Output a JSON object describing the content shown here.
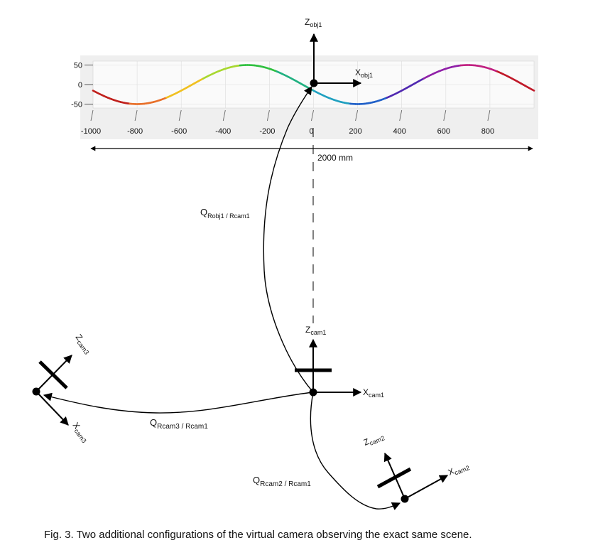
{
  "figure": {
    "plot": {
      "y_ticks": [
        "50",
        "0",
        "-50"
      ],
      "x_ticks": [
        "-1000",
        "-800",
        "-600",
        "-400",
        "-200",
        "0",
        "200",
        "400",
        "600",
        "800"
      ],
      "x_range": [
        -1000,
        1000
      ],
      "y_range": [
        -60,
        60
      ],
      "wave_amplitude": 50,
      "wave_period": 1000,
      "wave_colors": [
        "#c0201c",
        "#e8702a",
        "#f0c020",
        "#a8d830",
        "#30c040",
        "#20b080",
        "#20a0c0",
        "#2060c8",
        "#5028b0",
        "#9020a8",
        "#c02080",
        "#c01828"
      ]
    },
    "dimension_label": "2000 mm",
    "frames": {
      "obj1": {
        "z_main": "Z",
        "z_sub": "obj1",
        "x_main": "X",
        "x_sub": "obj1"
      },
      "cam1": {
        "z_main": "Z",
        "z_sub": "cam1",
        "x_main": "X",
        "x_sub": "cam1"
      },
      "cam2": {
        "z_main": "Z",
        "z_sub": "cam2",
        "x_main": "X",
        "x_sub": "cam2"
      },
      "cam3": {
        "z_main": "Z",
        "z_sub": "cam3",
        "x_main": "X",
        "x_sub": "cam3"
      }
    },
    "transforms": {
      "obj1_cam1": {
        "main": "Q",
        "sub": "Robj1 / Rcam1"
      },
      "cam3_cam1": {
        "main": "Q",
        "sub": "Rcam3 / Rcam1"
      },
      "cam2_cam1": {
        "main": "Q",
        "sub": "Rcam2 / Rcam1"
      }
    },
    "caption": "Fig. 3.  Two additional configurations of the virtual camera observing the exact same scene."
  }
}
